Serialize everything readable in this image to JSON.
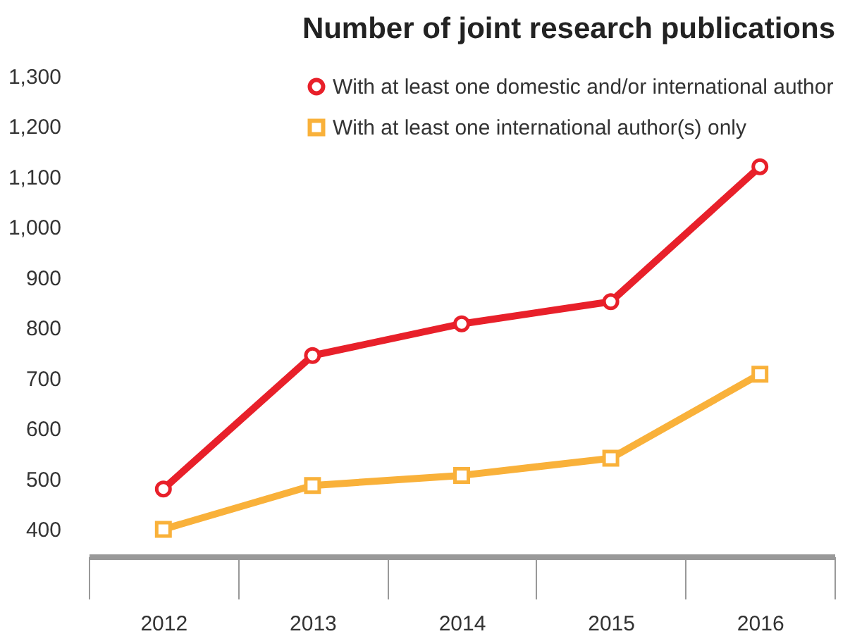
{
  "chart_data": {
    "type": "line",
    "title": "Number of joint research publications",
    "categories": [
      "2012",
      "2013",
      "2014",
      "2015",
      "2016"
    ],
    "series": [
      {
        "name": "With at least one domestic and/or international author",
        "color": "#e8202a",
        "marker": "circle",
        "values": [
          480,
          745,
          808,
          852,
          1120
        ]
      },
      {
        "name": "With at least one international author(s) only",
        "color": "#f9b13a",
        "marker": "square",
        "values": [
          400,
          487,
          507,
          541,
          708
        ]
      }
    ],
    "ylim": [
      346,
      1300
    ],
    "yticks": [
      {
        "value": 400,
        "label": "400"
      },
      {
        "value": 500,
        "label": "500"
      },
      {
        "value": 600,
        "label": "600"
      },
      {
        "value": 700,
        "label": "700"
      },
      {
        "value": 800,
        "label": "800"
      },
      {
        "value": 900,
        "label": "900"
      },
      {
        "value": 1000,
        "label": "1,000"
      },
      {
        "value": 1100,
        "label": "1,100"
      },
      {
        "value": 1200,
        "label": "1,200"
      },
      {
        "value": 1300,
        "label": "1,300"
      }
    ],
    "legend": "top right",
    "grid": false
  }
}
